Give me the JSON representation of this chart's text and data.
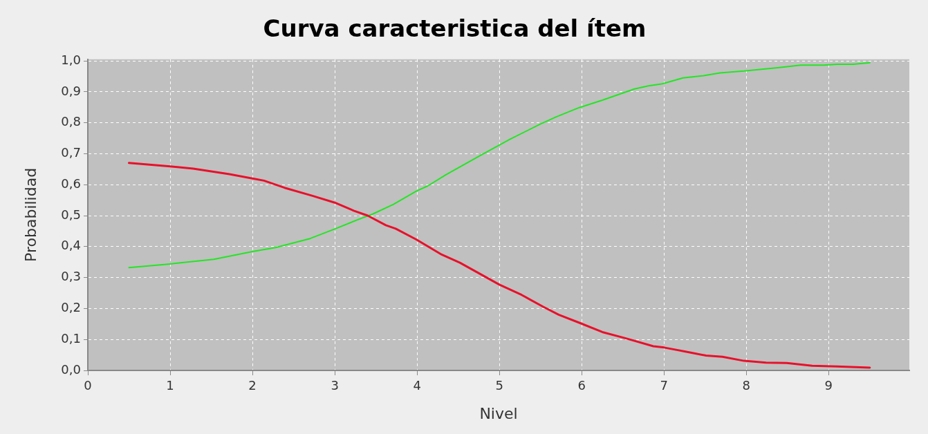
{
  "chart_data": {
    "type": "line",
    "title": "Curva caracteristica del ítem",
    "xlabel": "Nivel",
    "ylabel": "Probabilidad",
    "xlim": [
      0,
      9.98
    ],
    "xticks": [
      0,
      1,
      2,
      3,
      4,
      5,
      6,
      7,
      8,
      9
    ],
    "ylim": [
      0,
      1.005
    ],
    "yticks": [
      {
        "value": 0,
        "label": "0,0"
      },
      {
        "value": 0.1,
        "label": "0,1"
      },
      {
        "value": 0.2,
        "label": "0,2"
      },
      {
        "value": 0.3,
        "label": "0,3"
      },
      {
        "value": 0.4,
        "label": "0,4"
      },
      {
        "value": 0.5,
        "label": "0,5"
      },
      {
        "value": 0.6,
        "label": "0,6"
      },
      {
        "value": 0.7,
        "label": "0,7"
      },
      {
        "value": 0.8,
        "label": "0,8"
      },
      {
        "value": 0.9,
        "label": "0,9"
      },
      {
        "value": 1,
        "label": "1,0"
      }
    ],
    "grid": true,
    "marker": "none",
    "line_style": "solid",
    "series": [
      {
        "color": "#e8102a",
        "x": [
          0.5,
          1.0,
          1.28,
          1.5,
          1.72,
          2.0,
          2.14,
          2.39,
          2.73,
          3.0,
          3.23,
          3.4,
          3.62,
          3.74,
          3.99,
          4.3,
          4.52,
          5.0,
          5.27,
          5.53,
          5.72,
          5.97,
          6.25,
          6.53,
          6.87,
          7.0,
          7.26,
          7.51,
          7.71,
          7.97,
          8.24,
          8.49,
          8.8,
          9.1,
          9.5
        ],
        "values": [
          0.67,
          0.659,
          0.652,
          0.643,
          0.634,
          0.62,
          0.613,
          0.59,
          0.564,
          0.542,
          0.516,
          0.5,
          0.469,
          0.458,
          0.423,
          0.374,
          0.348,
          0.277,
          0.244,
          0.206,
          0.18,
          0.154,
          0.124,
          0.104,
          0.078,
          0.074,
          0.061,
          0.048,
          0.044,
          0.031,
          0.025,
          0.024,
          0.015,
          0.013,
          0.009
        ]
      },
      {
        "color": "#22e622",
        "x": [
          0.5,
          1.0,
          1.53,
          2.0,
          2.28,
          2.7,
          3.01,
          3.29,
          3.46,
          3.71,
          3.99,
          4.13,
          4.35,
          4.8,
          5.0,
          5.13,
          5.5,
          5.69,
          5.97,
          6.25,
          6.64,
          6.81,
          6.98,
          7.23,
          7.48,
          7.68,
          7.97,
          8.38,
          8.66,
          8.94,
          9.1,
          9.3,
          9.5
        ],
        "values": [
          0.332,
          0.344,
          0.359,
          0.384,
          0.397,
          0.426,
          0.458,
          0.488,
          0.505,
          0.536,
          0.579,
          0.596,
          0.632,
          0.699,
          0.728,
          0.747,
          0.796,
          0.819,
          0.849,
          0.873,
          0.909,
          0.919,
          0.926,
          0.945,
          0.952,
          0.961,
          0.967,
          0.978,
          0.986,
          0.986,
          0.989,
          0.989,
          0.994
        ]
      }
    ]
  }
}
